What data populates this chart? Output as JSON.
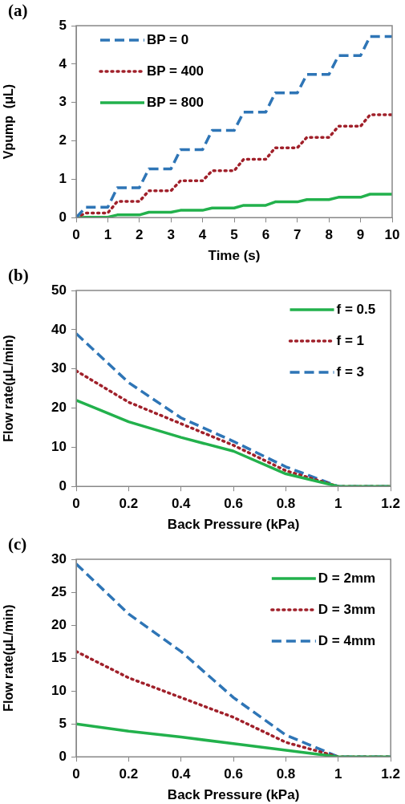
{
  "chart_data": [
    {
      "type": "line",
      "title": "(a)",
      "xlabel": "Time (s)",
      "ylabel": "Vpump  (μL)",
      "legend": "top left",
      "xlim": [
        0,
        10
      ],
      "xticks": [
        0,
        1,
        2,
        3,
        4,
        5,
        6,
        7,
        8,
        9,
        10
      ],
      "ylim": [
        0,
        5
      ],
      "yticks": [
        0,
        1,
        2,
        3,
        4,
        5
      ],
      "x": [
        0,
        0.3,
        1,
        1.3,
        2,
        2.3,
        3,
        3.3,
        4,
        4.3,
        5,
        5.3,
        6,
        6.3,
        7,
        7.3,
        8,
        8.3,
        9,
        9.3,
        10
      ],
      "series": [
        {
          "name": "BP = 0",
          "color": "#2e75b6",
          "line_style": "dashed",
          "values": [
            0,
            0.27,
            0.27,
            0.78,
            0.78,
            1.27,
            1.27,
            1.77,
            1.77,
            2.27,
            2.27,
            2.75,
            2.75,
            3.25,
            3.25,
            3.73,
            3.73,
            4.22,
            4.22,
            4.72,
            4.72
          ]
        },
        {
          "name": "BP = 400",
          "color": "#a0202a",
          "line_style": "dotted",
          "values": [
            0,
            0.12,
            0.12,
            0.42,
            0.42,
            0.7,
            0.7,
            0.96,
            0.96,
            1.22,
            1.22,
            1.52,
            1.52,
            1.82,
            1.82,
            2.09,
            2.09,
            2.38,
            2.38,
            2.68,
            2.68
          ]
        },
        {
          "name": "BP = 800",
          "color": "#22b14c",
          "line_style": "solid",
          "values": [
            0,
            0.01,
            0.01,
            0.07,
            0.07,
            0.14,
            0.14,
            0.19,
            0.19,
            0.25,
            0.25,
            0.32,
            0.32,
            0.41,
            0.41,
            0.47,
            0.47,
            0.53,
            0.53,
            0.61,
            0.61
          ]
        }
      ]
    },
    {
      "type": "line",
      "title": "(b)",
      "xlabel": "Back Pressure (kPa)",
      "ylabel": "Flow rate(μL/min)",
      "legend": "top right",
      "xlim": [
        0,
        1.2
      ],
      "xticks": [
        0,
        0.2,
        0.4,
        0.6,
        0.8,
        1,
        1.2
      ],
      "ylim": [
        0,
        50
      ],
      "yticks": [
        0,
        10,
        20,
        30,
        40,
        50
      ],
      "x": [
        0,
        0.2,
        0.4,
        0.6,
        0.8,
        1,
        1.2
      ],
      "series": [
        {
          "name": "f = 0.5",
          "color": "#22b14c",
          "line_style": "solid",
          "values": [
            22,
            16.5,
            12.5,
            9,
            3.2,
            0,
            0
          ]
        },
        {
          "name": "f = 1",
          "color": "#a0202a",
          "line_style": "dotted",
          "values": [
            29.5,
            21.5,
            16,
            10.5,
            4,
            0,
            0
          ]
        },
        {
          "name": "f = 3",
          "color": "#2e75b6",
          "line_style": "dashed",
          "values": [
            39,
            26.5,
            17.5,
            11.5,
            5,
            0,
            0
          ]
        }
      ]
    },
    {
      "type": "line",
      "title": "(c)",
      "xlabel": "Back Pressure (kPa)",
      "ylabel": "Flow rate(μL/min)",
      "legend": "top right",
      "xlim": [
        0,
        1.2
      ],
      "xticks": [
        0,
        0.2,
        0.4,
        0.6,
        0.8,
        1,
        1.2
      ],
      "ylim": [
        0,
        30
      ],
      "yticks": [
        0,
        5,
        10,
        15,
        20,
        25,
        30
      ],
      "x": [
        0,
        0.2,
        0.4,
        0.6,
        0.8,
        1,
        1.2
      ],
      "series": [
        {
          "name": "D = 2mm",
          "color": "#22b14c",
          "line_style": "solid",
          "values": [
            5,
            3.9,
            3,
            2,
            1,
            0,
            0
          ]
        },
        {
          "name": "D = 3mm",
          "color": "#a0202a",
          "line_style": "dotted",
          "values": [
            16,
            12,
            9,
            6,
            2.2,
            0,
            0
          ]
        },
        {
          "name": "D = 4mm",
          "color": "#2e75b6",
          "line_style": "dashed",
          "values": [
            29.3,
            21.7,
            16,
            9,
            3.3,
            0,
            0
          ]
        }
      ]
    }
  ]
}
